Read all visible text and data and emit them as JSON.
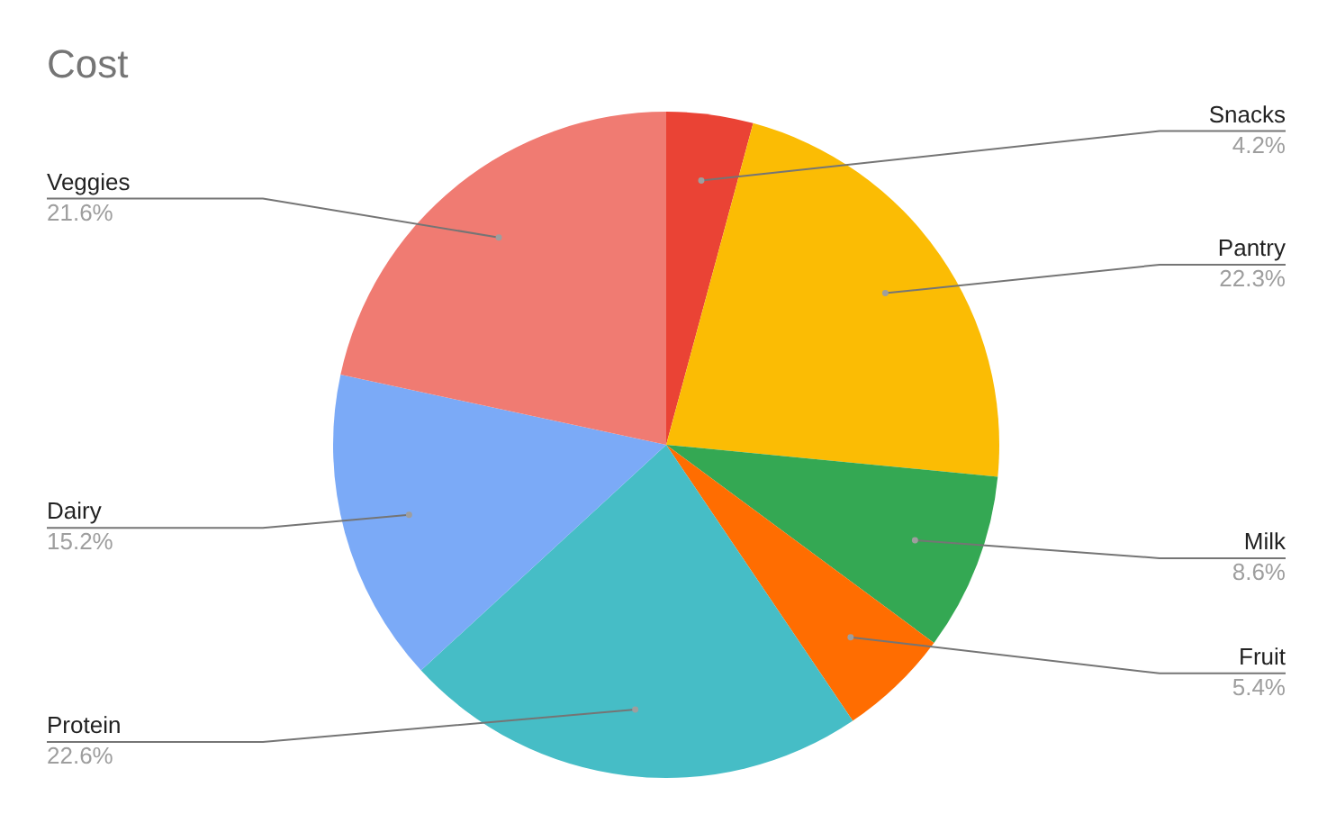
{
  "chart_data": {
    "type": "pie",
    "title": "Cost",
    "categories": [
      "Snacks",
      "Pantry",
      "Milk",
      "Fruit",
      "Protein",
      "Dairy",
      "Veggies"
    ],
    "values": [
      4.2,
      22.3,
      8.6,
      5.4,
      22.6,
      15.2,
      21.6
    ],
    "colors": [
      "#ea4335",
      "#fbbc04",
      "#34a853",
      "#ff6d01",
      "#46bdc6",
      "#7baaf7",
      "#f07b72"
    ],
    "value_labels": [
      "4.2%",
      "22.3%",
      "8.6%",
      "5.4%",
      "22.6%",
      "15.2%",
      "21.6%"
    ],
    "legend": false
  }
}
